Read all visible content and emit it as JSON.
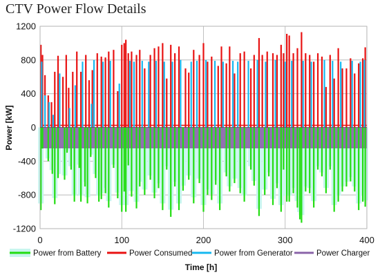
{
  "chart_data": {
    "type": "bar",
    "title": "CTV Power Flow Details",
    "xlabel": "Time [h]",
    "ylabel": "Power [kW]",
    "xlim": [
      0,
      400
    ],
    "ylim": [
      -1200,
      1200
    ],
    "x_ticks": [
      "0",
      "100",
      "200",
      "300",
      "400"
    ],
    "y_ticks": [
      "1200",
      "800",
      "400",
      "0",
      "-400",
      "-800",
      "-1200"
    ],
    "grid": true,
    "legend_position": "bottom",
    "legend": [
      "Power from Battery",
      "Power Consumed",
      "Power from Generator",
      "Power Charger"
    ],
    "colors": {
      "battery": "#22dd11",
      "battery_shade": "#c8f5ee",
      "consumed": "#e81212",
      "generator": "#16b8f0",
      "charger": "#8a63a8",
      "grid": "#b0b0b0"
    },
    "baseline": {
      "consumed_kw": 25,
      "charger_kw": -240
    },
    "series": {
      "power_from_battery": {
        "name": "Power from Battery",
        "x": [
          1,
          3,
          10,
          15,
          18,
          22,
          30,
          33,
          38,
          42,
          48,
          50,
          55,
          58,
          62,
          68,
          72,
          75,
          80,
          84,
          90,
          95,
          100,
          103,
          105,
          108,
          112,
          118,
          122,
          128,
          135,
          140,
          145,
          150,
          155,
          160,
          165,
          170,
          175,
          182,
          188,
          195,
          200,
          205,
          210,
          215,
          220,
          228,
          232,
          238,
          245,
          250,
          258,
          262,
          268,
          275,
          280,
          285,
          290,
          295,
          298,
          302,
          305,
          310,
          315,
          318,
          320,
          325,
          330,
          335,
          340,
          345,
          350,
          355,
          360,
          365,
          370,
          375,
          380,
          385,
          390,
          395,
          398
        ],
        "values": [
          -980,
          -250,
          -400,
          -550,
          -910,
          -600,
          -620,
          -300,
          -500,
          -880,
          -480,
          -880,
          -700,
          -900,
          -350,
          -600,
          -880,
          -850,
          -780,
          -950,
          -480,
          -840,
          -1000,
          -760,
          -1000,
          -450,
          -820,
          -960,
          -700,
          -800,
          -620,
          -840,
          -720,
          -980,
          -500,
          -1060,
          -700,
          -980,
          -750,
          -620,
          -900,
          -660,
          -1000,
          -800,
          -860,
          -680,
          -980,
          -580,
          -760,
          -660,
          -780,
          -880,
          -500,
          -690,
          -1050,
          -800,
          -580,
          -920,
          -720,
          -1000,
          -500,
          -880,
          -880,
          -780,
          -950,
          -1090,
          -1130,
          -760,
          -780,
          -950,
          -500,
          -580,
          -780,
          -500,
          -1000,
          -880,
          -760,
          -700,
          -640,
          -760,
          -980,
          -880,
          -940
        ]
      },
      "power_consumed": {
        "name": "Power Consumed",
        "x": [
          1,
          3,
          6,
          10,
          14,
          18,
          22,
          28,
          32,
          35,
          40,
          45,
          50,
          56,
          60,
          64,
          70,
          75,
          80,
          84,
          90,
          95,
          100,
          103,
          105,
          108,
          112,
          118,
          122,
          128,
          135,
          140,
          145,
          150,
          155,
          160,
          165,
          170,
          178,
          182,
          188,
          195,
          200,
          205,
          210,
          218,
          222,
          228,
          232,
          238,
          245,
          250,
          258,
          262,
          268,
          272,
          278,
          285,
          290,
          295,
          298,
          302,
          305,
          310,
          315,
          320,
          325,
          330,
          335,
          340,
          345,
          350,
          355,
          360,
          365,
          370,
          375,
          380,
          385,
          390,
          395,
          398
        ],
        "values": [
          980,
          860,
          620,
          380,
          300,
          660,
          850,
          600,
          860,
          470,
          660,
          900,
          660,
          860,
          560,
          680,
          880,
          840,
          830,
          900,
          920,
          430,
          980,
          1000,
          1040,
          880,
          900,
          860,
          920,
          700,
          860,
          940,
          960,
          1000,
          580,
          980,
          880,
          960,
          700,
          650,
          920,
          860,
          1000,
          780,
          840,
          730,
          960,
          760,
          960,
          640,
          880,
          900,
          700,
          860,
          1060,
          860,
          900,
          880,
          860,
          980,
          880,
          1110,
          1090,
          880,
          940,
          1130,
          880,
          860,
          780,
          880,
          840,
          480,
          860,
          580,
          940,
          700,
          700,
          820,
          640,
          760,
          820,
          950
        ]
      },
      "power_from_generator": {
        "name": "Power from Generator",
        "x": [
          2,
          6,
          11,
          16,
          24,
          36,
          43,
          52,
          63,
          66,
          77,
          86,
          97,
          110,
          115,
          125,
          133,
          142,
          152,
          162,
          172,
          185,
          192,
          203,
          214,
          224,
          236,
          242,
          255,
          266,
          276,
          288,
          300,
          308,
          322,
          332,
          348,
          358,
          368,
          382,
          392,
          397
        ],
        "values": [
          780,
          380,
          300,
          150,
          640,
          230,
          500,
          780,
          280,
          800,
          780,
          790,
          520,
          790,
          780,
          790,
          780,
          790,
          780,
          780,
          800,
          780,
          790,
          800,
          790,
          780,
          790,
          780,
          790,
          800,
          780,
          800,
          780,
          790,
          790,
          780,
          800,
          790,
          780,
          790,
          780,
          800
        ]
      },
      "power_charger": {
        "name": "Power Charger",
        "segments": [
          [
            0,
            400
          ]
        ],
        "values": [
          -240
        ]
      }
    }
  }
}
